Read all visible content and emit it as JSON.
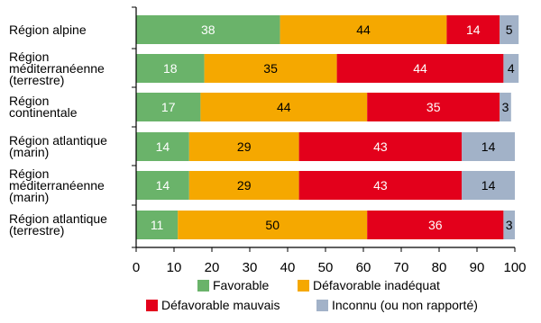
{
  "chart_data": {
    "type": "bar",
    "orientation": "horizontal",
    "stacked": true,
    "title": "",
    "xlabel": "",
    "ylabel": "",
    "xlim": [
      0,
      100
    ],
    "x_ticks": [
      "0",
      "10",
      "20",
      "30",
      "40",
      "50",
      "60",
      "70",
      "80",
      "90",
      "100"
    ],
    "categories": [
      "Région alpine",
      "Région méditerranéenne (terrestre)",
      "Région continentale",
      "Région atlantique (marin)",
      "Région méditerranéenne (marin)",
      "Région atlantique (terrestre)"
    ],
    "category_label_lines": [
      [
        "Région alpine"
      ],
      [
        "Région",
        "méditerranéenne",
        "(terrestre)"
      ],
      [
        "Région",
        "continentale"
      ],
      [
        "Région atlantique",
        "(marin)"
      ],
      [
        "Région",
        "méditerranéenne",
        "(marin)"
      ],
      [
        "Région atlantique",
        "(terrestre)"
      ]
    ],
    "series": [
      {
        "name": "Favorable",
        "color": "#6ab36a",
        "label_color": "#ffffff",
        "values": [
          38,
          18,
          17,
          14,
          14,
          11
        ]
      },
      {
        "name": "Défavorable inadéquat",
        "color": "#f5a800",
        "label_color": "#000000",
        "values": [
          44,
          35,
          44,
          29,
          29,
          50
        ]
      },
      {
        "name": "Défavorable mauvais",
        "color": "#e3001b",
        "label_color": "#ffffff",
        "values": [
          14,
          44,
          35,
          43,
          43,
          36
        ]
      },
      {
        "name": "Inconnu (ou non rapporté)",
        "color": "#a2b2c8",
        "label_color": "#000000",
        "values": [
          5,
          4,
          3,
          14,
          14,
          3
        ]
      }
    ],
    "legend_position": "bottom",
    "grid": false
  }
}
